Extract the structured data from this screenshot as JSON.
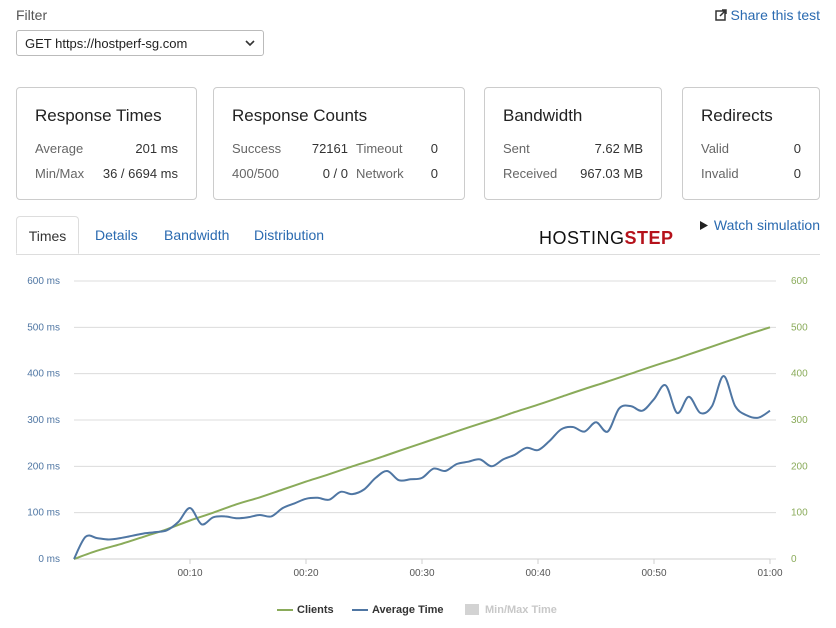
{
  "filter": {
    "label": "Filter",
    "selected": "GET https://hostperf-sg.com",
    "share_label": "Share this test"
  },
  "cards": {
    "response_times": {
      "title": "Response Times",
      "avg_label": "Average",
      "avg_value": "201 ms",
      "minmax_label": "Min/Max",
      "minmax_value": "36 / 6694 ms"
    },
    "response_counts": {
      "title": "Response Counts",
      "success_label": "Success",
      "success_value": "72161",
      "timeout_label": "Timeout",
      "timeout_value": "0",
      "err_label": "400/500",
      "err_value": "0 / 0",
      "network_label": "Network",
      "network_value": "0"
    },
    "bandwidth": {
      "title": "Bandwidth",
      "sent_label": "Sent",
      "sent_value": "7.62 MB",
      "received_label": "Received",
      "received_value": "967.03 MB"
    },
    "redirects": {
      "title": "Redirects",
      "valid_label": "Valid",
      "valid_value": "0",
      "invalid_label": "Invalid",
      "invalid_value": "0"
    }
  },
  "tabs": [
    "Times",
    "Details",
    "Bandwidth",
    "Distribution"
  ],
  "logo": {
    "part1": "HOSTING",
    "part2": "STEP"
  },
  "watch_label": "Watch simulation",
  "colors": {
    "clients": "#8aab5a",
    "avg": "#4f76a3",
    "minmax": "#d3d3d3",
    "link": "#2a6ab0",
    "left_axis": "#4f76a3",
    "right_axis": "#8aab5a"
  },
  "chart_data": {
    "type": "line",
    "x_ticks": [
      "00:10",
      "00:20",
      "00:30",
      "00:40",
      "00:50",
      "01:00"
    ],
    "x_tick_seconds": [
      10,
      20,
      30,
      40,
      50,
      60
    ],
    "xlim": [
      0,
      60
    ],
    "ylim": [
      0,
      600
    ],
    "y_ticks_left": [
      "0 ms",
      "100 ms",
      "200 ms",
      "300 ms",
      "400 ms",
      "500 ms",
      "600 ms"
    ],
    "y_ticks_right": [
      "0",
      "100",
      "200",
      "300",
      "400",
      "500",
      "600"
    ],
    "legend": [
      "Clients",
      "Average Time",
      "Min/Max Time"
    ],
    "series": [
      {
        "name": "Clients",
        "x": [
          0,
          2,
          4,
          6,
          8,
          10,
          12,
          14,
          16,
          18,
          20,
          22,
          24,
          26,
          28,
          30,
          32,
          34,
          36,
          38,
          40,
          42,
          44,
          46,
          48,
          50,
          52,
          54,
          56,
          58,
          60
        ],
        "values": [
          0,
          18,
          32,
          48,
          64,
          83,
          100,
          118,
          133,
          150,
          167,
          183,
          200,
          216,
          233,
          250,
          267,
          284,
          300,
          317,
          333,
          350,
          367,
          383,
          400,
          417,
          433,
          450,
          467,
          484,
          500
        ]
      },
      {
        "name": "Average Time",
        "x": [
          0,
          1,
          2,
          3,
          4,
          5,
          6,
          7,
          8,
          9,
          10,
          11,
          12,
          13,
          14,
          15,
          16,
          17,
          18,
          19,
          20,
          21,
          22,
          23,
          24,
          25,
          26,
          27,
          28,
          29,
          30,
          31,
          32,
          33,
          34,
          35,
          36,
          37,
          38,
          39,
          40,
          41,
          42,
          43,
          44,
          45,
          46,
          47,
          48,
          49,
          50,
          51,
          52,
          53,
          54,
          55,
          56,
          57,
          58,
          59,
          60
        ],
        "values": [
          0,
          48,
          45,
          42,
          45,
          50,
          55,
          58,
          62,
          80,
          110,
          75,
          90,
          92,
          88,
          90,
          95,
          92,
          110,
          120,
          130,
          132,
          128,
          145,
          140,
          150,
          175,
          190,
          170,
          172,
          175,
          195,
          190,
          205,
          210,
          215,
          200,
          215,
          225,
          240,
          235,
          255,
          280,
          285,
          275,
          295,
          275,
          325,
          330,
          320,
          345,
          375,
          315,
          350,
          315,
          330,
          395,
          330,
          310,
          305,
          320
        ]
      }
    ]
  }
}
